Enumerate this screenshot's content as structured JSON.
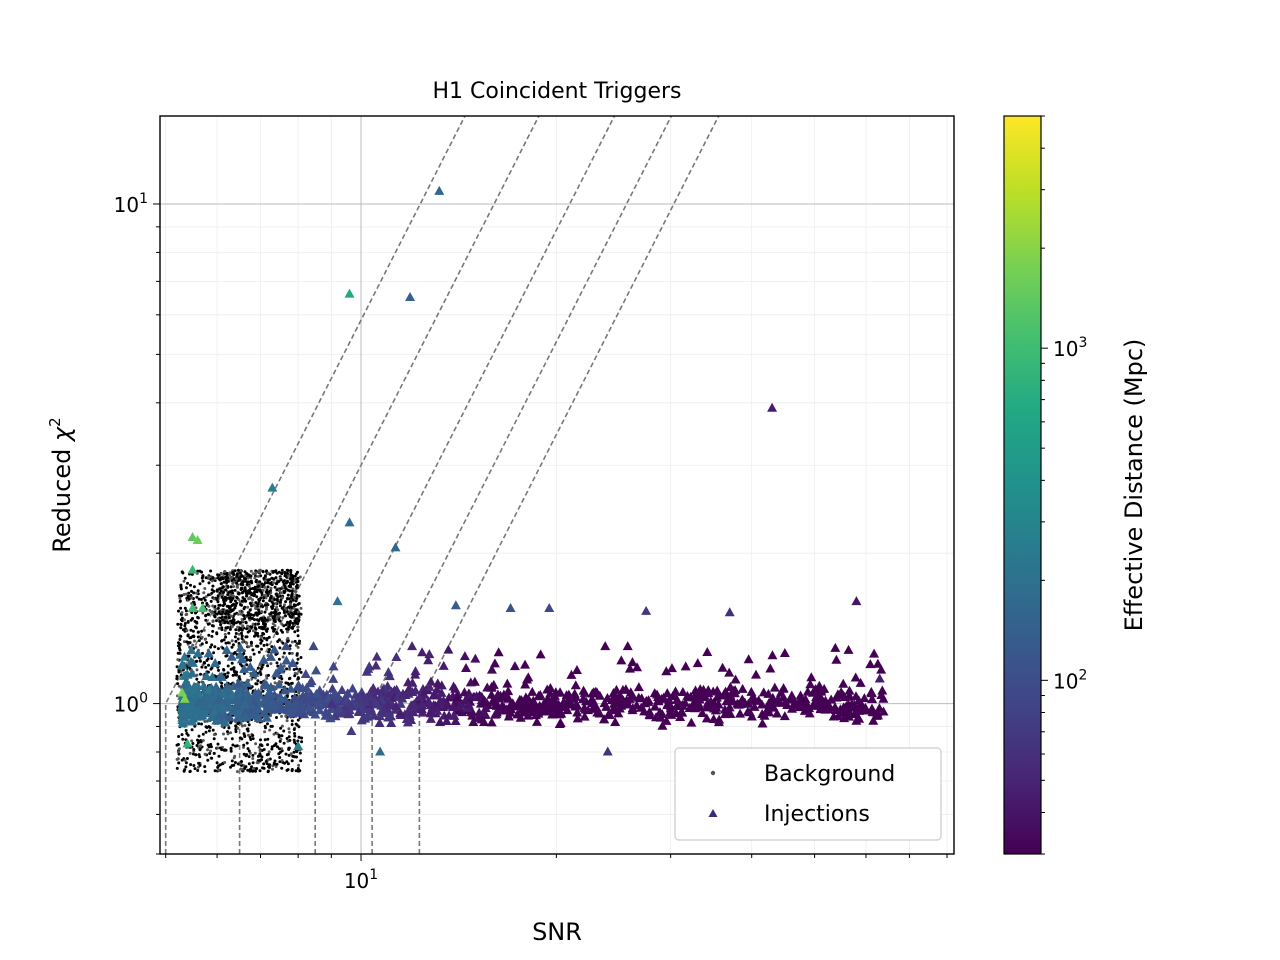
{
  "chart_data": {
    "type": "scatter",
    "title": "H1 Coincident Triggers",
    "xlabel": "SNR",
    "ylabel_prefix": "Reduced ",
    "ylabel_symbol": "χ",
    "ylabel_sup": "2",
    "xscale": "log",
    "yscale": "log",
    "xlim": [
      4.9,
      82
    ],
    "ylim": [
      0.5,
      15
    ],
    "x_ticks": [
      {
        "value": 10,
        "base": "10",
        "exp": "1"
      }
    ],
    "y_ticks": [
      {
        "value": 1,
        "base": "10",
        "exp": "0"
      },
      {
        "value": 10,
        "base": "10",
        "exp": "1"
      }
    ],
    "grid": true,
    "legend": {
      "position": "lower right",
      "entries": [
        {
          "label": "Background",
          "marker": "dot",
          "color": "#555555"
        },
        {
          "label": "Injections",
          "marker": "triangle",
          "color": "#3e2a74"
        }
      ]
    },
    "colorbar": {
      "label": "Effective Distance (Mpc)",
      "scale": "log",
      "range": [
        30,
        5000
      ],
      "ticks": [
        {
          "value": 100,
          "base": "10",
          "exp": "2"
        },
        {
          "value": 1000,
          "base": "10",
          "exp": "3"
        }
      ],
      "colormap": [
        "#440154",
        "#482475",
        "#414487",
        "#355f8d",
        "#2a788e",
        "#21918c",
        "#22a884",
        "#44bf70",
        "#7ad151",
        "#bddf26",
        "#fde725"
      ]
    },
    "contours": {
      "style": "dashed",
      "color": "#777777",
      "x_floor": [
        5.0,
        6.5,
        8.5,
        10.4,
        12.3
      ]
    },
    "series": [
      {
        "name": "Background",
        "marker": "dot",
        "color": "#000000",
        "clusters": [
          {
            "x_range": [
              5.2,
              8.1
            ],
            "y_range": [
              0.73,
              1.85
            ],
            "count": 1500
          },
          {
            "x_range": [
              6.0,
              8.0
            ],
            "y_range": [
              1.4,
              1.85
            ],
            "count": 500
          }
        ]
      },
      {
        "name": "Injections",
        "marker": "triangle",
        "distance_unit": "Mpc",
        "points": [
          {
            "x": 13.2,
            "y": 10.6,
            "d": 160
          },
          {
            "x": 9.6,
            "y": 6.6,
            "d": 650
          },
          {
            "x": 11.9,
            "y": 6.5,
            "d": 150
          },
          {
            "x": 43.0,
            "y": 3.9,
            "d": 45
          },
          {
            "x": 7.3,
            "y": 2.7,
            "d": 260
          },
          {
            "x": 9.6,
            "y": 2.3,
            "d": 180
          },
          {
            "x": 11.3,
            "y": 2.05,
            "d": 170
          },
          {
            "x": 5.5,
            "y": 2.15,
            "d": 1400
          },
          {
            "x": 5.6,
            "y": 2.12,
            "d": 1600
          },
          {
            "x": 5.5,
            "y": 1.85,
            "d": 900
          },
          {
            "x": 5.5,
            "y": 1.55,
            "d": 1000
          },
          {
            "x": 5.7,
            "y": 1.55,
            "d": 1100
          },
          {
            "x": 5.3,
            "y": 1.05,
            "d": 1800
          },
          {
            "x": 5.35,
            "y": 1.02,
            "d": 1900
          },
          {
            "x": 5.4,
            "y": 0.83,
            "d": 800
          },
          {
            "x": 58.0,
            "y": 1.6,
            "d": 40
          },
          {
            "x": 63.0,
            "y": 1.12,
            "d": 45
          },
          {
            "x": 24.0,
            "y": 0.8,
            "d": 65
          },
          {
            "x": 10.7,
            "y": 0.8,
            "d": 180
          },
          {
            "x": 8.0,
            "y": 0.82,
            "d": 250
          },
          {
            "x": 17.0,
            "y": 1.55,
            "d": 110
          },
          {
            "x": 19.5,
            "y": 1.55,
            "d": 90
          },
          {
            "x": 27.5,
            "y": 1.53,
            "d": 70
          },
          {
            "x": 37.0,
            "y": 1.52,
            "d": 60
          },
          {
            "x": 14.0,
            "y": 1.57,
            "d": 130
          },
          {
            "x": 9.2,
            "y": 1.6,
            "d": 200
          }
        ],
        "band": {
          "x_range": [
            5.3,
            64
          ],
          "y_center": 1.0,
          "y_spread": [
            0.85,
            1.3
          ],
          "count": 1300,
          "distance_model": "d = 3900 / SNR^1.75"
        }
      }
    ]
  }
}
